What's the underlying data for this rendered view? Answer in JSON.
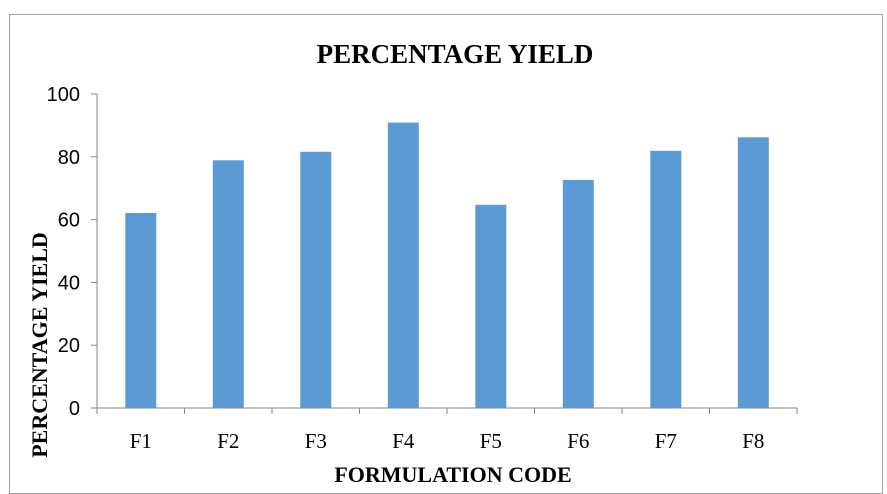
{
  "chart_data": {
    "type": "bar",
    "title": "PERCENTAGE YIELD",
    "xlabel": "FORMULATION CODE",
    "ylabel": "PERCENTAGE YIELD",
    "categories": [
      "F1",
      "F2",
      "F3",
      "F4",
      "F5",
      "F6",
      "F7",
      "F8"
    ],
    "values": [
      62.1,
      78.9,
      81.6,
      90.9,
      64.7,
      72.6,
      81.9,
      86.2
    ],
    "ylim": [
      0,
      100
    ],
    "yticks": [
      "0",
      "20",
      "40",
      "60",
      "80",
      "100"
    ],
    "grid": false,
    "legend": "none",
    "bar_color": "#5b9bd5",
    "axis_color": "#868686",
    "frame_color": "#a6a6a6"
  }
}
